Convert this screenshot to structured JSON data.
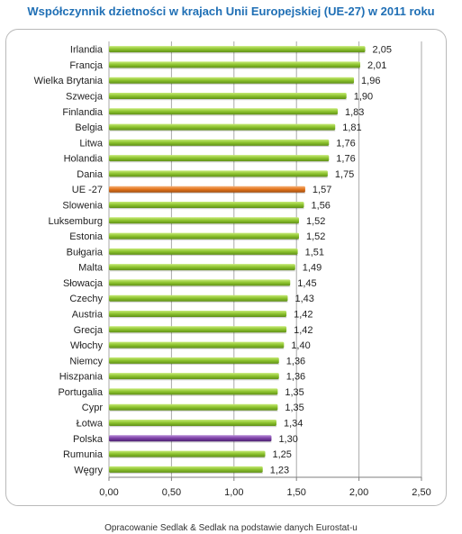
{
  "chart_data": {
    "type": "bar",
    "orientation": "horizontal",
    "title": "Współczynnik dzietności w krajach Unii Europejskiej (UE-27) w 2011 roku",
    "categories": [
      "Irlandia",
      "Francja",
      "Wielka Brytania",
      "Szwecja",
      "Finlandia",
      "Belgia",
      "Litwa",
      "Holandia",
      "Dania",
      "UE -27",
      "Slowenia",
      "Luksemburg",
      "Estonia",
      "Bułgaria",
      "Malta",
      "Słowacja",
      "Czechy",
      "Austria",
      "Grecja",
      "Włochy",
      "Niemcy",
      "Hiszpania",
      "Portugalia",
      "Cypr",
      "Łotwa",
      "Polska",
      "Rumunia",
      "Węgry"
    ],
    "values": [
      2.05,
      2.01,
      1.96,
      1.9,
      1.83,
      1.81,
      1.76,
      1.76,
      1.75,
      1.57,
      1.56,
      1.52,
      1.52,
      1.51,
      1.49,
      1.45,
      1.43,
      1.42,
      1.42,
      1.4,
      1.36,
      1.36,
      1.35,
      1.35,
      1.34,
      1.3,
      1.25,
      1.23
    ],
    "value_labels": [
      "2,05",
      "2,01",
      "1,96",
      "1,90",
      "1,83",
      "1,81",
      "1,76",
      "1,76",
      "1,75",
      "1,57",
      "1,56",
      "1,52",
      "1,52",
      "1,51",
      "1,49",
      "1,45",
      "1,43",
      "1,42",
      "1,42",
      "1,40",
      "1,36",
      "1,36",
      "1,35",
      "1,35",
      "1,34",
      "1,30",
      "1,25",
      "1,23"
    ],
    "xlim": [
      0,
      2.5
    ],
    "xticks": [
      0,
      0.5,
      1.0,
      1.5,
      2.0,
      2.5
    ],
    "xtick_labels": [
      "0,00",
      "0,50",
      "1,00",
      "1,50",
      "2,00",
      "2,50"
    ],
    "grid": true,
    "colors": {
      "default": "#9acd32",
      "highlight_ue": "#e2741c",
      "highlight_polska": "#7b3fa5",
      "grid": "#a9a9a9",
      "title": "#1f6fb5"
    },
    "highlight": {
      "UE -27": "highlight_ue",
      "Polska": "highlight_polska"
    }
  },
  "footer": "Opracowanie Sedlak & Sedlak na podstawie danych Eurostat-u"
}
